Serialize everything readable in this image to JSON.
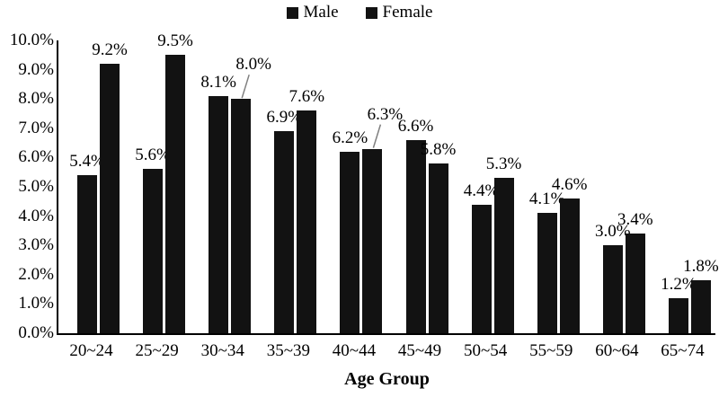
{
  "chart_data": {
    "type": "bar",
    "title": "",
    "xlabel": "Age Group",
    "ylabel": "",
    "categories": [
      "20~24",
      "25~29",
      "30~34",
      "35~39",
      "40~44",
      "45~49",
      "50~54",
      "55~59",
      "60~64",
      "65~74"
    ],
    "series": [
      {
        "name": "Male",
        "color": "#121212",
        "values": [
          5.4,
          5.6,
          8.1,
          6.9,
          6.2,
          6.6,
          4.4,
          4.1,
          3.0,
          1.2
        ],
        "labels": [
          "5.4%",
          "5.6%",
          "8.1%",
          "6.9%",
          "6.2%",
          "6.6%",
          "4.4%",
          "4.1%",
          "3.0%",
          "1.2%"
        ]
      },
      {
        "name": "Female",
        "color": "#121212",
        "values": [
          9.2,
          9.5,
          8.0,
          7.6,
          6.3,
          5.8,
          5.3,
          4.6,
          3.4,
          1.8
        ],
        "labels": [
          "9.2%",
          "9.5%",
          "8.0%",
          "7.6%",
          "6.3%",
          "5.8%",
          "5.3%",
          "4.6%",
          "3.4%",
          "1.8%"
        ]
      }
    ],
    "ylim": [
      0,
      10
    ],
    "ytick_step": 1,
    "ytick_labels": [
      "0.0%",
      "1.0%",
      "2.0%",
      "3.0%",
      "4.0%",
      "5.0%",
      "6.0%",
      "7.0%",
      "8.0%",
      "9.0%",
      "10.0%"
    ],
    "grid": false,
    "legend_position": "top-center",
    "axis_color": "#000000",
    "leader_line_color": "#808080",
    "callouts": [
      {
        "series": "Female",
        "category": "30~34",
        "label": "8.0%"
      },
      {
        "series": "Female",
        "category": "40~44",
        "label": "6.3%"
      }
    ]
  }
}
